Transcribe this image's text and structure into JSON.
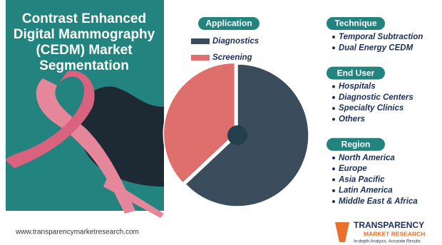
{
  "header": {
    "title_lines": [
      "Contrast Enhanced",
      "Digital Mammography",
      "(CEDM) Market",
      "Segmentation"
    ]
  },
  "chart_data": {
    "type": "pie",
    "title": "Application",
    "categories": [
      "Diagnostics",
      "Screening"
    ],
    "values": [
      63,
      37
    ],
    "colors": [
      "#3b4d5c",
      "#df6f6d"
    ]
  },
  "segments": [
    {
      "title": "Technique",
      "items": [
        "Temporal Subtraction",
        "Dual Energy CEDM"
      ]
    },
    {
      "title": "End User",
      "items": [
        "Hospitals",
        "Diagnostic Centers",
        "Specialty Clinics",
        "Others"
      ]
    },
    {
      "title": "Region",
      "items": [
        "North America",
        "Europe",
        "Asia Pacific",
        "Latin America",
        "Middle East & Africa"
      ]
    }
  ],
  "footer": {
    "url": "www.transparencymarketresearch.com",
    "logo": [
      "TRANSPARENCY",
      "MARKET RESEARCH",
      "In-depth Analysis. Accurate Results"
    ]
  }
}
